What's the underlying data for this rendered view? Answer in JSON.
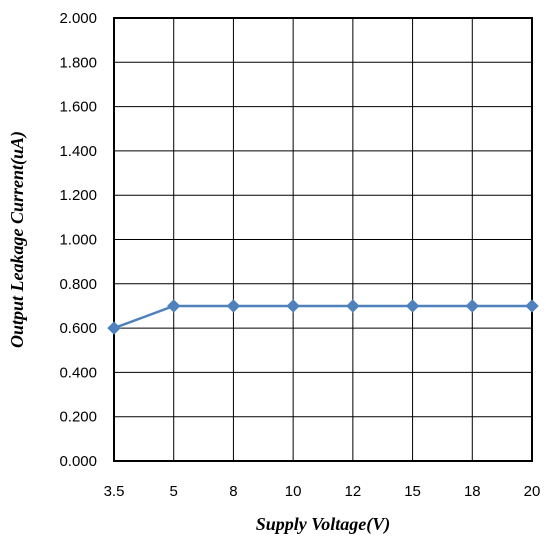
{
  "chart_data": {
    "type": "line",
    "title": "",
    "xlabel": "Supply Voltage(V)",
    "ylabel": "Output Leakage Current(uA)",
    "categories": [
      "3.5",
      "5",
      "8",
      "10",
      "12",
      "15",
      "18",
      "20"
    ],
    "series": [
      {
        "values": [
          0.6,
          0.7,
          0.7,
          0.7,
          0.7,
          0.7,
          0.7,
          0.7
        ],
        "color": "#4F81BD",
        "marker": "diamond"
      }
    ],
    "y_ticks": [
      "0.000",
      "0.200",
      "0.400",
      "0.600",
      "0.800",
      "1.000",
      "1.200",
      "1.400",
      "1.600",
      "1.800",
      "2.000"
    ],
    "ylim": [
      0,
      2
    ],
    "grid": true,
    "legend": "none"
  }
}
